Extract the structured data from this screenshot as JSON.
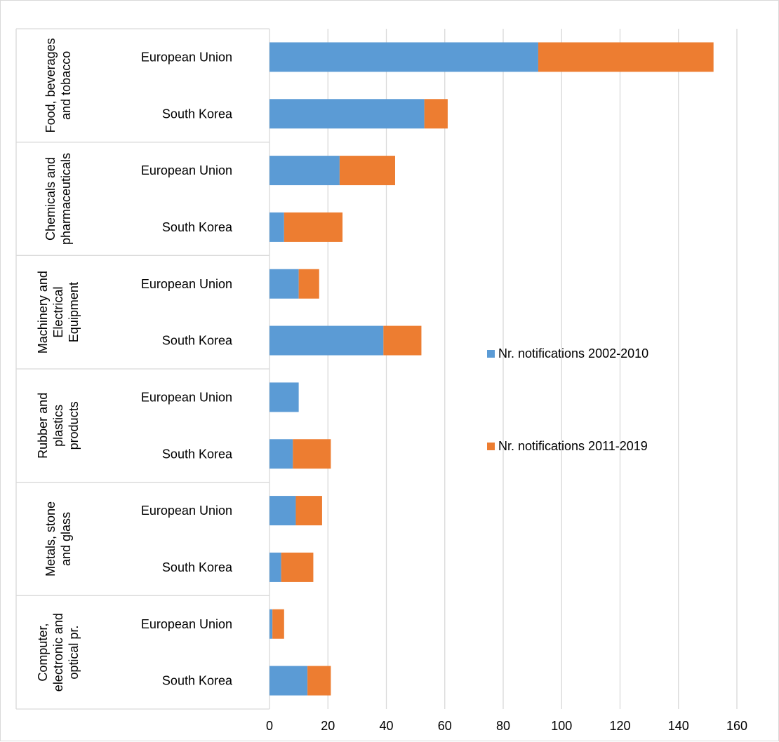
{
  "chart_data": {
    "type": "bar",
    "orientation": "horizontal",
    "stacked": true,
    "title": "",
    "xlabel": "",
    "ylabel": "",
    "xlim": [
      0,
      160
    ],
    "xticks": [
      "0",
      "20",
      "40",
      "60",
      "80",
      "100",
      "120",
      "140",
      "160"
    ],
    "grid": true,
    "legend_position": "right",
    "groups": [
      {
        "label_lines": [
          "Food, beverages",
          "and tobacco"
        ],
        "categories": [
          "European Union",
          "South Korea"
        ]
      },
      {
        "label_lines": [
          "Chemicals and",
          "pharmaceuticals"
        ],
        "categories": [
          "European Union",
          "South Korea"
        ]
      },
      {
        "label_lines": [
          "Machinery and",
          "Electrical",
          "Equipment"
        ],
        "categories": [
          "European Union",
          "South Korea"
        ]
      },
      {
        "label_lines": [
          "Rubber and",
          "plastics",
          "products"
        ],
        "categories": [
          "European Union",
          "South Korea"
        ]
      },
      {
        "label_lines": [
          "Metals, stone",
          "and glass"
        ],
        "categories": [
          "European Union",
          "South Korea"
        ]
      },
      {
        "label_lines": [
          "Computer,",
          "electronic and",
          "optical pr."
        ],
        "categories": [
          "European Union",
          "South Korea"
        ]
      }
    ],
    "series": [
      {
        "name": "Nr. notifications 2002-2010",
        "color": "#5b9bd5",
        "values": [
          92,
          53,
          24,
          5,
          10,
          39,
          10,
          8,
          9,
          4,
          1,
          13
        ]
      },
      {
        "name": "Nr. notifications 2011-2019",
        "color": "#ed7d31",
        "values": [
          60,
          8,
          19,
          20,
          7,
          13,
          0,
          13,
          9,
          11,
          4,
          8
        ]
      }
    ]
  }
}
